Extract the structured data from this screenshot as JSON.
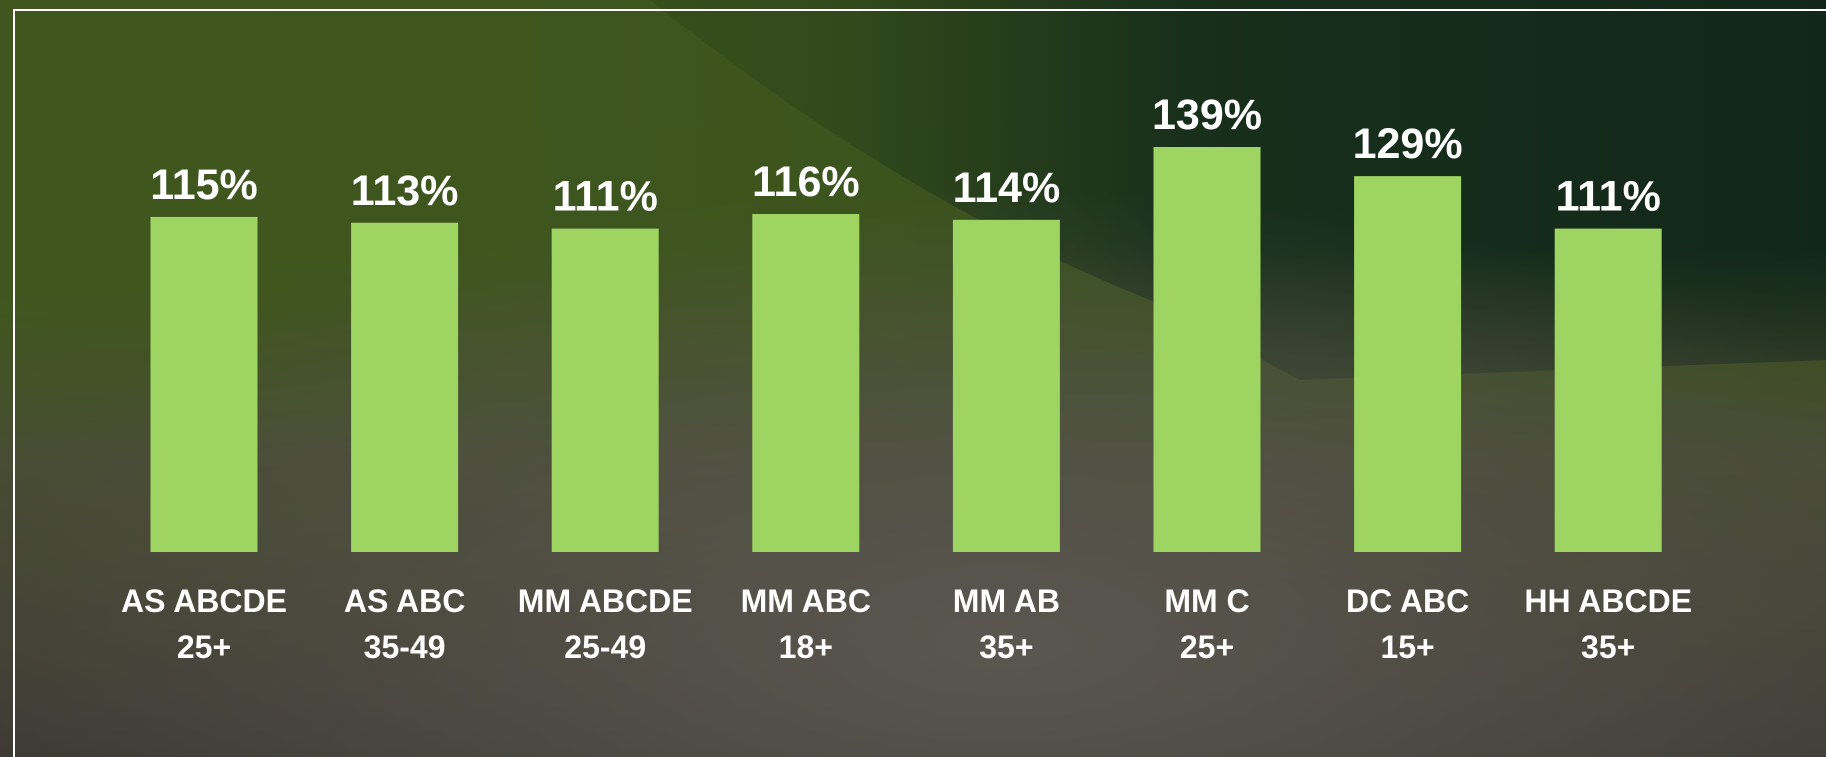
{
  "chart_data": {
    "type": "bar",
    "categories": [
      [
        "AS ABCDE",
        "25+"
      ],
      [
        "AS ABC",
        "35-49"
      ],
      [
        "MM ABCDE",
        "25-49"
      ],
      [
        "MM ABC",
        "18+"
      ],
      [
        "MM AB",
        "35+"
      ],
      [
        "MM C",
        "25+"
      ],
      [
        "DC ABC",
        "15+"
      ],
      [
        "HH ABCDE",
        "35+"
      ]
    ],
    "values": [
      115,
      113,
      111,
      116,
      114,
      139,
      129,
      111
    ],
    "value_labels": [
      "115%",
      "113%",
      "111%",
      "116%",
      "114%",
      "139%",
      "129%",
      "111%"
    ],
    "color": "#9ed461"
  }
}
